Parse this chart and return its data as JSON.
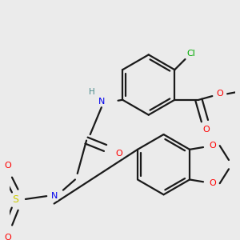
{
  "bg_color": "#ebebeb",
  "bond_color": "#1a1a1a",
  "colors": {
    "N": "#0000ee",
    "O": "#ff0000",
    "S": "#cccc00",
    "Cl": "#00aa00",
    "H": "#4a8a8a",
    "C": "#1a1a1a"
  },
  "lw": 1.6,
  "figsize": [
    3.0,
    3.0
  ],
  "dpi": 100
}
